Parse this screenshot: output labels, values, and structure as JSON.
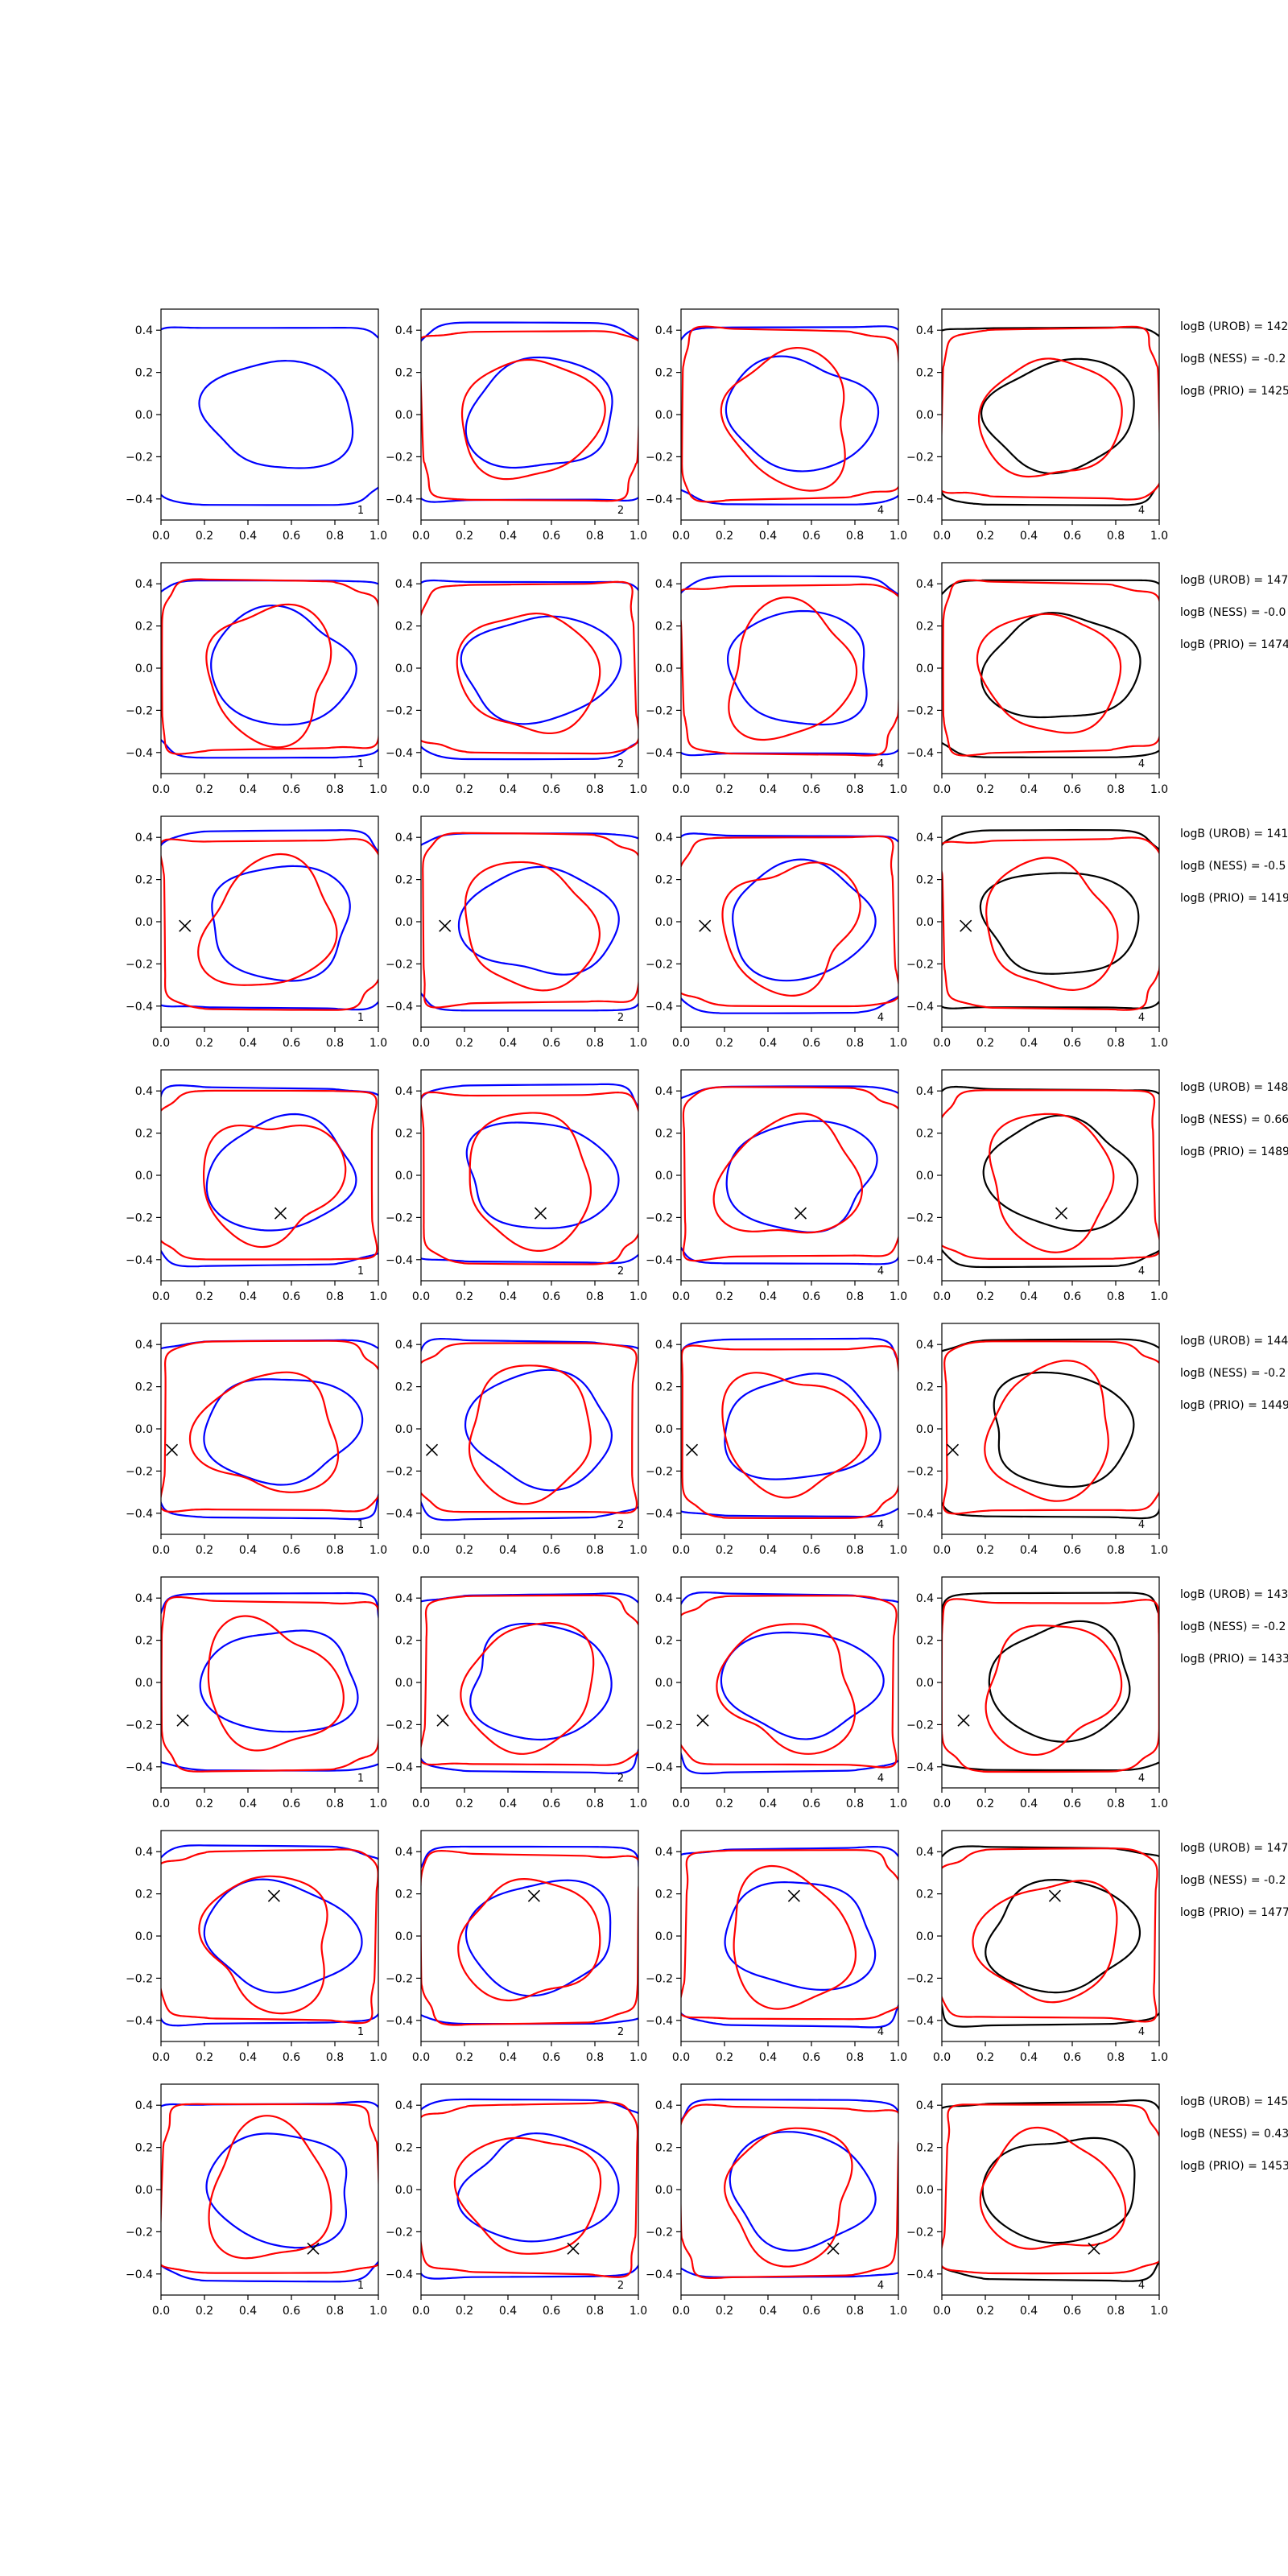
{
  "figure": {
    "background": "#ffffff",
    "colors": {
      "blue": "#0000ff",
      "red": "#ff0000",
      "black": "#000000",
      "axis": "#000000"
    }
  },
  "chart_data": {
    "type": "contour",
    "grid": false,
    "xlim": [
      0,
      1
    ],
    "ylim": [
      -0.5,
      0.5
    ],
    "xticks": [
      "0.0",
      "0.2",
      "0.4",
      "0.6",
      "0.8",
      "1.0"
    ],
    "yticks": [
      "0.4",
      "0.2",
      "0.0",
      "−0.2",
      "−0.4"
    ],
    "rows": [
      {
        "marker": null,
        "annotations": [
          "logB (UROB) = 142",
          "logB (NESS) = -0.2",
          "logB (PRIO) = 1425"
        ],
        "panel_labels": [
          "1",
          "2",
          "4",
          "4"
        ]
      },
      {
        "marker": null,
        "annotations": [
          "logB (UROB) = 147",
          "logB (NESS) = -0.0",
          "logB (PRIO) = 1474"
        ],
        "panel_labels": [
          "1",
          "2",
          "4",
          "4"
        ]
      },
      {
        "marker": [
          0.11,
          -0.02
        ],
        "annotations": [
          "logB (UROB) = 141",
          "logB (NESS) = -0.5",
          "logB (PRIO) = 1419"
        ],
        "panel_labels": [
          "1",
          "2",
          "4",
          "4"
        ]
      },
      {
        "marker": [
          0.55,
          -0.18
        ],
        "annotations": [
          "logB (UROB) = 148",
          "logB (NESS) = 0.66",
          "logB (PRIO) = 1489"
        ],
        "panel_labels": [
          "1",
          "2",
          "4",
          "4"
        ]
      },
      {
        "marker": [
          0.05,
          -0.1
        ],
        "annotations": [
          "logB (UROB) = 144",
          "logB (NESS) = -0.2",
          "logB (PRIO) = 1449"
        ],
        "panel_labels": [
          "1",
          "2",
          "4",
          "4"
        ]
      },
      {
        "marker": [
          0.1,
          -0.18
        ],
        "annotations": [
          "logB (UROB) = 143",
          "logB (NESS) = -0.2",
          "logB (PRIO) = 1433"
        ],
        "panel_labels": [
          "1",
          "2",
          "4",
          "4"
        ]
      },
      {
        "marker": [
          0.52,
          0.19
        ],
        "annotations": [
          "logB (UROB) = 147",
          "logB (NESS) = -0.2",
          "logB (PRIO) = 1477"
        ],
        "panel_labels": [
          "1",
          "2",
          "4",
          "4"
        ]
      },
      {
        "marker": [
          0.7,
          -0.28
        ],
        "annotations": [
          "logB (UROB) = 145",
          "logB (NESS) = 0.43",
          "logB (PRIO) = 1453"
        ],
        "panel_labels": [
          "1",
          "2",
          "4",
          "4"
        ]
      }
    ]
  }
}
